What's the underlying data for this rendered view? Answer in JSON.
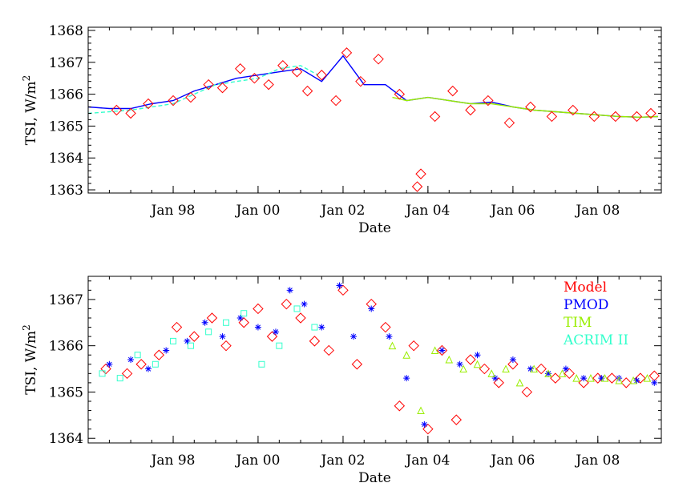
{
  "chart_data": [
    {
      "type": "line",
      "panel": "top",
      "xlabel": "Date",
      "ylabel": "TSI,  W/m",
      "ylabel_sup": "2",
      "xlim": [
        "1996-01-01",
        "2009-06-30"
      ],
      "ylim": [
        1362.9,
        1368.1
      ],
      "x_ticks": [
        {
          "date": "1998-01-01",
          "label": "Jan 98"
        },
        {
          "date": "2000-01-01",
          "label": "Jan 00"
        },
        {
          "date": "2002-01-01",
          "label": "Jan 02"
        },
        {
          "date": "2004-01-01",
          "label": "Jan 04"
        },
        {
          "date": "2006-01-01",
          "label": "Jan 06"
        },
        {
          "date": "2008-01-01",
          "label": "Jan 08"
        }
      ],
      "y_ticks": [
        1363,
        1364,
        1365,
        1366,
        1367,
        1368
      ],
      "grid": false,
      "legend": "none",
      "series": [
        {
          "color": "#0000ff",
          "style": "line",
          "x": [
            "1996-01-01",
            "1996-07-01",
            "1997-01-01",
            "1997-07-01",
            "1998-01-01",
            "1998-07-01",
            "1999-01-01",
            "1999-07-01",
            "2000-01-01",
            "2000-07-01",
            "2001-01-01",
            "2001-07-01",
            "2002-01-01",
            "2002-07-01",
            "2003-01-01",
            "2003-07-01",
            "2004-01-01",
            "2004-07-01",
            "2005-01-01",
            "2005-07-01",
            "2006-01-01",
            "2006-07-01",
            "2007-01-01",
            "2007-07-01",
            "2008-01-01",
            "2008-07-01",
            "2009-01-01",
            "2009-06-01"
          ],
          "y": [
            1365.6,
            1365.55,
            1365.55,
            1365.7,
            1365.8,
            1366.1,
            1366.3,
            1366.5,
            1366.6,
            1366.7,
            1366.8,
            1366.4,
            1367.2,
            1366.3,
            1366.3,
            1365.8,
            1365.9,
            1365.8,
            1365.7,
            1365.75,
            1365.6,
            1365.5,
            1365.45,
            1365.4,
            1365.35,
            1365.3,
            1365.28,
            1365.3
          ]
        },
        {
          "color": "#33ffcc",
          "style": "dashed",
          "x": [
            "1996-01-01",
            "1996-07-01",
            "1997-01-01",
            "1997-07-01",
            "1998-01-01",
            "1998-07-01",
            "1999-01-01",
            "1999-07-01",
            "2000-01-01",
            "2000-07-01",
            "2001-01-01",
            "2001-06-01"
          ],
          "y": [
            1365.4,
            1365.45,
            1365.5,
            1365.6,
            1365.7,
            1366.0,
            1366.3,
            1366.4,
            1366.5,
            1366.8,
            1366.9,
            1366.6
          ]
        },
        {
          "color": "#99ee00",
          "style": "line",
          "x": [
            "2003-03-01",
            "2003-07-01",
            "2004-01-01",
            "2004-07-01",
            "2005-01-01",
            "2005-07-01",
            "2006-01-01",
            "2006-07-01",
            "2007-01-01",
            "2007-07-01",
            "2008-01-01",
            "2008-07-01",
            "2009-01-01",
            "2009-06-01"
          ],
          "y": [
            1365.9,
            1365.8,
            1365.9,
            1365.8,
            1365.7,
            1365.7,
            1365.6,
            1365.5,
            1365.45,
            1365.4,
            1365.35,
            1365.3,
            1365.28,
            1365.3
          ]
        },
        {
          "color": "#ff0000",
          "style": "diamond",
          "x": [
            "1996-09-01",
            "1997-01-01",
            "1997-06-01",
            "1998-01-01",
            "1998-06-01",
            "1998-11-01",
            "1999-03-01",
            "1999-08-01",
            "1999-12-01",
            "2000-04-01",
            "2000-08-01",
            "2000-12-01",
            "2001-03-01",
            "2001-07-01",
            "2001-11-01",
            "2002-02-01",
            "2002-06-01",
            "2002-11-01",
            "2003-05-01",
            "2003-10-01",
            "2003-11-01",
            "2004-03-01",
            "2004-08-01",
            "2005-01-01",
            "2005-06-01",
            "2005-12-01",
            "2006-06-01",
            "2006-12-01",
            "2007-06-01",
            "2007-12-01",
            "2008-06-01",
            "2008-12-01",
            "2009-04-01"
          ],
          "y": [
            1365.5,
            1365.4,
            1365.7,
            1365.8,
            1365.9,
            1366.3,
            1366.2,
            1366.8,
            1366.5,
            1366.3,
            1366.9,
            1366.7,
            1366.1,
            1366.6,
            1365.8,
            1367.3,
            1366.4,
            1367.1,
            1366.0,
            1363.1,
            1363.5,
            1365.3,
            1366.1,
            1365.5,
            1365.8,
            1365.1,
            1365.6,
            1365.3,
            1365.5,
            1365.3,
            1365.3,
            1365.3,
            1365.4
          ]
        }
      ]
    },
    {
      "type": "scatter",
      "panel": "bottom",
      "xlabel": "Date",
      "ylabel": "TSI,  W/m",
      "ylabel_sup": "2",
      "xlim": [
        "1996-01-01",
        "2009-06-30"
      ],
      "ylim": [
        1363.9,
        1367.5
      ],
      "x_ticks": [
        {
          "date": "1998-01-01",
          "label": "Jan 98"
        },
        {
          "date": "2000-01-01",
          "label": "Jan 00"
        },
        {
          "date": "2002-01-01",
          "label": "Jan 02"
        },
        {
          "date": "2004-01-01",
          "label": "Jan 04"
        },
        {
          "date": "2006-01-01",
          "label": "Jan 06"
        },
        {
          "date": "2008-01-01",
          "label": "Jan 08"
        }
      ],
      "y_ticks": [
        1364,
        1365,
        1366,
        1367
      ],
      "grid": false,
      "legend": "top-right",
      "series": [
        {
          "name": "Model",
          "color": "#ff0000",
          "marker": "diamond",
          "x": [
            "1996-06-01",
            "1996-12-01",
            "1997-04-01",
            "1997-09-01",
            "1998-02-01",
            "1998-07-01",
            "1998-12-01",
            "1999-04-01",
            "1999-09-01",
            "2000-01-01",
            "2000-05-01",
            "2000-09-01",
            "2001-01-01",
            "2001-05-01",
            "2001-09-01",
            "2002-01-01",
            "2002-05-01",
            "2002-09-01",
            "2003-01-01",
            "2003-05-01",
            "2003-09-01",
            "2004-01-01",
            "2004-05-01",
            "2004-09-01",
            "2005-01-01",
            "2005-05-01",
            "2005-09-01",
            "2006-01-01",
            "2006-05-01",
            "2006-09-01",
            "2007-01-01",
            "2007-05-01",
            "2007-09-01",
            "2008-01-01",
            "2008-05-01",
            "2008-09-01",
            "2009-01-01",
            "2009-05-01"
          ],
          "y": [
            1365.5,
            1365.4,
            1365.6,
            1365.8,
            1366.4,
            1366.2,
            1366.6,
            1366.0,
            1366.5,
            1366.8,
            1366.2,
            1366.9,
            1366.6,
            1366.1,
            1365.9,
            1367.2,
            1365.6,
            1366.9,
            1366.4,
            1364.7,
            1366.0,
            1364.2,
            1365.9,
            1364.4,
            1365.7,
            1365.5,
            1365.2,
            1365.6,
            1365.0,
            1365.5,
            1365.3,
            1365.4,
            1365.2,
            1365.3,
            1365.3,
            1365.2,
            1365.3,
            1365.35
          ]
        },
        {
          "name": "PMOD",
          "color": "#0000ff",
          "marker": "asterisk",
          "x": [
            "1996-07-01",
            "1997-01-01",
            "1997-06-01",
            "1997-11-01",
            "1998-05-01",
            "1998-10-01",
            "1999-03-01",
            "1999-08-01",
            "2000-01-01",
            "2000-06-01",
            "2000-10-01",
            "2001-02-01",
            "2001-07-01",
            "2001-12-01",
            "2002-04-01",
            "2002-09-01",
            "2003-02-01",
            "2003-07-01",
            "2003-12-01",
            "2004-05-01",
            "2004-10-01",
            "2005-03-01",
            "2005-08-01",
            "2006-01-01",
            "2006-06-01",
            "2006-11-01",
            "2007-04-01",
            "2007-09-01",
            "2008-02-01",
            "2008-07-01",
            "2008-12-01",
            "2009-05-01"
          ],
          "y": [
            1365.6,
            1365.7,
            1365.5,
            1365.9,
            1366.1,
            1366.5,
            1366.2,
            1366.6,
            1366.4,
            1366.3,
            1367.2,
            1366.9,
            1366.4,
            1367.3,
            1366.2,
            1366.8,
            1366.2,
            1365.3,
            1364.3,
            1365.9,
            1365.6,
            1365.8,
            1365.3,
            1365.7,
            1365.5,
            1365.4,
            1365.5,
            1365.3,
            1365.3,
            1365.3,
            1365.25,
            1365.2
          ]
        },
        {
          "name": "TIM",
          "color": "#99ee00",
          "marker": "triangle",
          "x": [
            "2003-03-01",
            "2003-07-01",
            "2003-11-01",
            "2004-03-01",
            "2004-07-01",
            "2004-11-01",
            "2005-03-01",
            "2005-07-01",
            "2005-11-01",
            "2006-03-01",
            "2006-07-01",
            "2006-11-01",
            "2007-03-01",
            "2007-07-01",
            "2007-11-01",
            "2008-03-01",
            "2008-07-01",
            "2008-11-01",
            "2009-03-01"
          ],
          "y": [
            1366.0,
            1365.8,
            1364.6,
            1365.9,
            1365.7,
            1365.5,
            1365.6,
            1365.4,
            1365.5,
            1365.2,
            1365.5,
            1365.4,
            1365.4,
            1365.3,
            1365.3,
            1365.3,
            1365.25,
            1365.25,
            1365.3
          ]
        },
        {
          "name": "ACRIM II",
          "color": "#33ffcc",
          "marker": "square",
          "x": [
            "1996-05-01",
            "1996-10-01",
            "1997-03-01",
            "1997-08-01",
            "1998-01-01",
            "1998-06-01",
            "1998-11-01",
            "1999-04-01",
            "1999-09-01",
            "2000-02-01",
            "2000-07-01",
            "2000-12-01",
            "2001-05-01"
          ],
          "y": [
            1365.4,
            1365.3,
            1365.8,
            1365.6,
            1366.1,
            1366.0,
            1366.3,
            1366.5,
            1366.7,
            1365.6,
            1366.0,
            1366.8,
            1366.4
          ]
        }
      ],
      "legend_items": [
        "Model",
        "PMOD",
        "TIM",
        "ACRIM II"
      ]
    }
  ]
}
